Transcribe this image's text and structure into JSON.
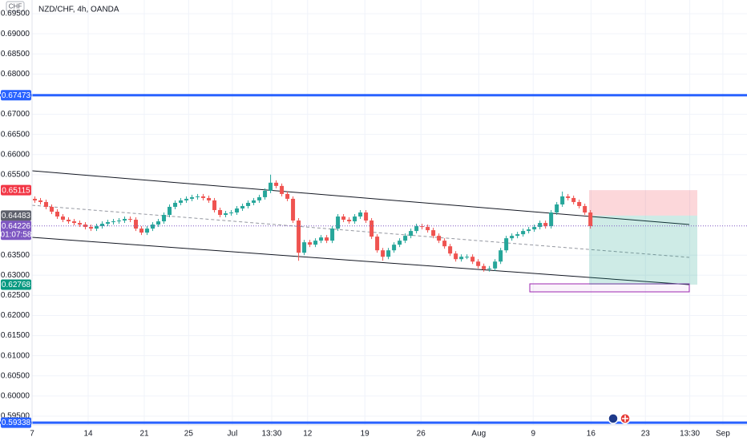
{
  "chart_data": {
    "type": "candlestick",
    "title": "NZD/CHF, 4h, OANDA",
    "axis_currency": "CHF",
    "countdown": "01:07:58",
    "up_color": "#26a69a",
    "down_color": "#ef5350",
    "grid": true,
    "ylim": [
      0.5928,
      0.6984
    ],
    "xlim": [
      -0.5,
      126.9
    ],
    "yticks": [
      {
        "value": 0.695,
        "label": "0.69500"
      },
      {
        "value": 0.69,
        "label": "0.69000"
      },
      {
        "value": 0.685,
        "label": "0.68500"
      },
      {
        "value": 0.68,
        "label": "0.68000"
      },
      {
        "value": 0.67,
        "label": "0.67000"
      },
      {
        "value": 0.665,
        "label": "0.66500"
      },
      {
        "value": 0.66,
        "label": "0.66000"
      },
      {
        "value": 0.655,
        "label": "0.65500"
      },
      {
        "value": 0.635,
        "label": "0.63500"
      },
      {
        "value": 0.63,
        "label": "0.63000"
      },
      {
        "value": 0.625,
        "label": "0.62500"
      },
      {
        "value": 0.62,
        "label": "0.62000"
      },
      {
        "value": 0.615,
        "label": "0.61500"
      },
      {
        "value": 0.61,
        "label": "0.61000"
      },
      {
        "value": 0.605,
        "label": "0.60500"
      },
      {
        "value": 0.6,
        "label": "0.60000"
      },
      {
        "value": 0.595,
        "label": "0.59500"
      }
    ],
    "xticks": [
      {
        "value": -0.5,
        "label": "7"
      },
      {
        "value": 9.5,
        "label": "14"
      },
      {
        "value": 19.5,
        "label": "21"
      },
      {
        "value": 27.4,
        "label": "25"
      },
      {
        "value": 35.2,
        "label": "Jul"
      },
      {
        "value": 42.2,
        "label": "13:30"
      },
      {
        "value": 48.6,
        "label": "12"
      },
      {
        "value": 58.8,
        "label": "19"
      },
      {
        "value": 68.8,
        "label": "26"
      },
      {
        "value": 79.1,
        "label": "Aug"
      },
      {
        "value": 88.8,
        "label": "9"
      },
      {
        "value": 99.1,
        "label": "16"
      },
      {
        "value": 108.8,
        "label": "23"
      },
      {
        "value": 116.7,
        "label": "13:30"
      },
      {
        "value": 122.6,
        "label": "Sep"
      }
    ],
    "hlines": [
      {
        "value": 0.67473,
        "label": "0.67473",
        "color": "#2962ff"
      },
      {
        "value": 0.59338,
        "label": "0.59338",
        "color": "#2962ff"
      }
    ],
    "position": {
      "entry": 0.64483,
      "stop": 0.65115,
      "target": 0.62768
    },
    "price_labels": [
      {
        "value": 0.65115,
        "label": "0.65115",
        "color": "#f23645"
      },
      {
        "value": 0.64483,
        "label": "0.64483",
        "color": "#5d606b"
      },
      {
        "value": 0.64226,
        "label": "0.64226",
        "color": "#7e57c2"
      },
      {
        "value": 0.62768,
        "label": "0.62768",
        "color": "#089981"
      }
    ],
    "candles": [
      [
        0.649,
        0.6496,
        0.648,
        0.6486
      ],
      [
        0.6486,
        0.6492,
        0.6476,
        0.6482
      ],
      [
        0.6482,
        0.6488,
        0.6464,
        0.647
      ],
      [
        0.647,
        0.6476,
        0.6452,
        0.6458
      ],
      [
        0.6458,
        0.6464,
        0.644,
        0.6446
      ],
      [
        0.6446,
        0.6452,
        0.6432,
        0.6438
      ],
      [
        0.6438,
        0.6444,
        0.6428,
        0.6434
      ],
      [
        0.6434,
        0.644,
        0.6424,
        0.643
      ],
      [
        0.643,
        0.6436,
        0.642,
        0.6426
      ],
      [
        0.6426,
        0.6432,
        0.6414,
        0.642
      ],
      [
        0.642,
        0.6426,
        0.641,
        0.6416
      ],
      [
        0.6416,
        0.6428,
        0.641,
        0.6422
      ],
      [
        0.6422,
        0.6434,
        0.6416,
        0.6428
      ],
      [
        0.6428,
        0.6438,
        0.6422,
        0.6432
      ],
      [
        0.6432,
        0.644,
        0.6426,
        0.6434
      ],
      [
        0.6434,
        0.6442,
        0.6428,
        0.6436
      ],
      [
        0.6436,
        0.6446,
        0.643,
        0.644
      ],
      [
        0.644,
        0.6446,
        0.6432,
        0.6438
      ],
      [
        0.6438,
        0.6444,
        0.641,
        0.6416
      ],
      [
        0.6416,
        0.6422,
        0.64,
        0.6406
      ],
      [
        0.6406,
        0.6422,
        0.64,
        0.6416
      ],
      [
        0.6416,
        0.6432,
        0.641,
        0.6426
      ],
      [
        0.6426,
        0.644,
        0.642,
        0.6434
      ],
      [
        0.6434,
        0.6456,
        0.6428,
        0.645
      ],
      [
        0.645,
        0.6476,
        0.6444,
        0.647
      ],
      [
        0.647,
        0.6486,
        0.6464,
        0.648
      ],
      [
        0.648,
        0.6492,
        0.6474,
        0.6486
      ],
      [
        0.6486,
        0.6496,
        0.648,
        0.649
      ],
      [
        0.649,
        0.65,
        0.6484,
        0.6494
      ],
      [
        0.6494,
        0.6502,
        0.6488,
        0.6496
      ],
      [
        0.6496,
        0.6502,
        0.6486,
        0.6492
      ],
      [
        0.6492,
        0.6498,
        0.648,
        0.6486
      ],
      [
        0.6486,
        0.6492,
        0.6456,
        0.6462
      ],
      [
        0.6462,
        0.6468,
        0.6444,
        0.645
      ],
      [
        0.645,
        0.646,
        0.6444,
        0.6454
      ],
      [
        0.6454,
        0.6462,
        0.6448,
        0.6456
      ],
      [
        0.6456,
        0.6472,
        0.645,
        0.6466
      ],
      [
        0.6466,
        0.6478,
        0.646,
        0.6472
      ],
      [
        0.6472,
        0.6486,
        0.6466,
        0.648
      ],
      [
        0.648,
        0.6492,
        0.6474,
        0.6486
      ],
      [
        0.6486,
        0.65,
        0.648,
        0.6494
      ],
      [
        0.6494,
        0.6516,
        0.6488,
        0.651
      ],
      [
        0.651,
        0.655,
        0.6504,
        0.653
      ],
      [
        0.653,
        0.6536,
        0.6516,
        0.6522
      ],
      [
        0.6522,
        0.6528,
        0.6496,
        0.6502
      ],
      [
        0.6502,
        0.6508,
        0.6484,
        0.649
      ],
      [
        0.649,
        0.6496,
        0.643,
        0.6436
      ],
      [
        0.6436,
        0.6442,
        0.6336,
        0.6356
      ],
      [
        0.6356,
        0.6388,
        0.635,
        0.6382
      ],
      [
        0.6382,
        0.6388,
        0.637,
        0.6376
      ],
      [
        0.6376,
        0.6392,
        0.637,
        0.6386
      ],
      [
        0.6386,
        0.64,
        0.638,
        0.6394
      ],
      [
        0.6394,
        0.64,
        0.638,
        0.6386
      ],
      [
        0.6386,
        0.6422,
        0.638,
        0.6416
      ],
      [
        0.6416,
        0.6452,
        0.641,
        0.6446
      ],
      [
        0.6446,
        0.6452,
        0.6432,
        0.6438
      ],
      [
        0.6438,
        0.6444,
        0.6428,
        0.6434
      ],
      [
        0.6434,
        0.6452,
        0.6428,
        0.6446
      ],
      [
        0.6446,
        0.6462,
        0.644,
        0.6456
      ],
      [
        0.6456,
        0.6462,
        0.643,
        0.6436
      ],
      [
        0.6436,
        0.6442,
        0.639,
        0.6396
      ],
      [
        0.6396,
        0.6402,
        0.6356,
        0.6362
      ],
      [
        0.6362,
        0.6368,
        0.6336,
        0.6346
      ],
      [
        0.6346,
        0.6368,
        0.634,
        0.6362
      ],
      [
        0.6362,
        0.6382,
        0.6356,
        0.6376
      ],
      [
        0.6376,
        0.6392,
        0.637,
        0.6386
      ],
      [
        0.6386,
        0.6404,
        0.638,
        0.6398
      ],
      [
        0.6398,
        0.6416,
        0.6392,
        0.641
      ],
      [
        0.641,
        0.6428,
        0.6404,
        0.6422
      ],
      [
        0.6422,
        0.6428,
        0.6414,
        0.642
      ],
      [
        0.642,
        0.6426,
        0.6406,
        0.6412
      ],
      [
        0.6412,
        0.6418,
        0.6392,
        0.6398
      ],
      [
        0.6398,
        0.6404,
        0.638,
        0.6386
      ],
      [
        0.6386,
        0.6392,
        0.6366,
        0.6372
      ],
      [
        0.6372,
        0.6378,
        0.6348,
        0.6354
      ],
      [
        0.6354,
        0.636,
        0.6334,
        0.634
      ],
      [
        0.634,
        0.6352,
        0.6334,
        0.6346
      ],
      [
        0.6346,
        0.6352,
        0.634,
        0.6346
      ],
      [
        0.6346,
        0.6352,
        0.6328,
        0.6334
      ],
      [
        0.6334,
        0.634,
        0.6317,
        0.6323
      ],
      [
        0.6323,
        0.6329,
        0.6309,
        0.6315
      ],
      [
        0.6315,
        0.6323,
        0.6309,
        0.6317
      ],
      [
        0.6317,
        0.634,
        0.6311,
        0.6334
      ],
      [
        0.6334,
        0.6368,
        0.6328,
        0.6362
      ],
      [
        0.6362,
        0.6398,
        0.6356,
        0.6392
      ],
      [
        0.6392,
        0.6404,
        0.6386,
        0.6398
      ],
      [
        0.6398,
        0.6408,
        0.6392,
        0.6402
      ],
      [
        0.6402,
        0.6416,
        0.6396,
        0.641
      ],
      [
        0.641,
        0.642,
        0.6404,
        0.6414
      ],
      [
        0.6414,
        0.6426,
        0.6408,
        0.642
      ],
      [
        0.642,
        0.6436,
        0.6414,
        0.643
      ],
      [
        0.643,
        0.6436,
        0.6416,
        0.6422
      ],
      [
        0.6422,
        0.6462,
        0.6416,
        0.6456
      ],
      [
        0.6456,
        0.6482,
        0.645,
        0.6476
      ],
      [
        0.6476,
        0.6508,
        0.647,
        0.6496
      ],
      [
        0.6496,
        0.6502,
        0.6486,
        0.6492
      ],
      [
        0.6492,
        0.6498,
        0.6476,
        0.6482
      ],
      [
        0.6482,
        0.6488,
        0.6466,
        0.6472
      ],
      [
        0.6472,
        0.6478,
        0.645,
        0.6456
      ],
      [
        0.6456,
        0.6462,
        0.6416,
        0.6422
      ]
    ]
  }
}
